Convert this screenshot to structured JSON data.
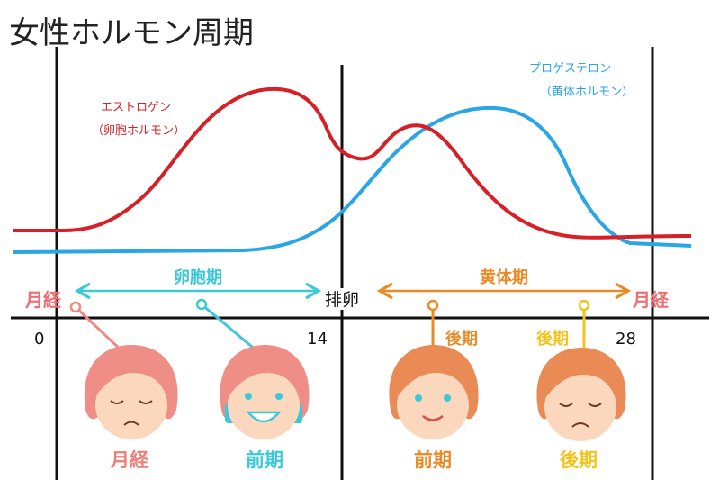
{
  "title": "女性ホルモン周期",
  "curves": {
    "estrogen": {
      "name": "エストロゲン",
      "sub": "（卵胞ホルモン）",
      "color": "#d61f26"
    },
    "progesterone": {
      "name": "プロゲステロン",
      "sub": "（黄体ホルモン）",
      "color": "#2aa5e6"
    }
  },
  "phases": {
    "follicular": {
      "label": "卵胞期",
      "color": "#3cc8d8"
    },
    "luteal": {
      "label": "黄体期",
      "color": "#ea8a25"
    }
  },
  "events": {
    "menstruation_left": "月経",
    "ovulation": "排卵",
    "menstruation_right": "月経",
    "color": "#ee6f73"
  },
  "days": [
    "0",
    "14",
    "28"
  ],
  "stages": {
    "luteal_late_tag": "後期",
    "luteal_early_tag": "後期",
    "faces": [
      {
        "label": "月経",
        "color": "#ee7e78"
      },
      {
        "label": "前期",
        "color": "#3cc8d8"
      },
      {
        "label": "前期",
        "color": "#ea8a25"
      },
      {
        "label": "後期",
        "color": "#f2c318"
      }
    ]
  }
}
